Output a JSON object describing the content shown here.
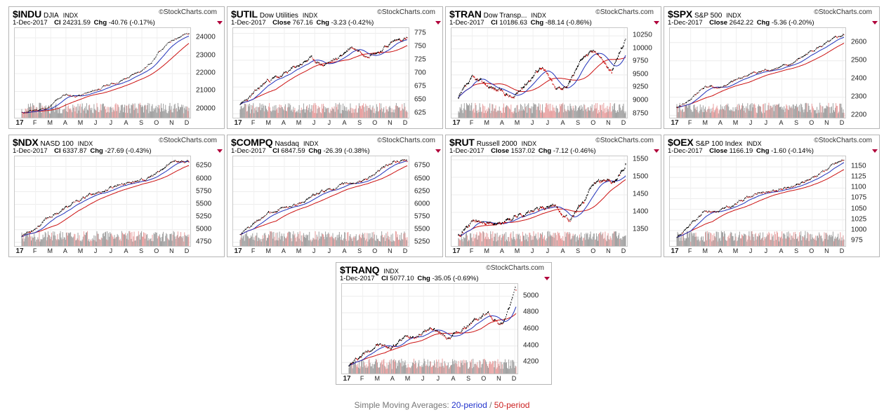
{
  "x_labels": [
    "17",
    "F",
    "M",
    "A",
    "M",
    "J",
    "J",
    "A",
    "S",
    "O",
    "N",
    "D"
  ],
  "colors": {
    "price": "#000000",
    "down": "#cc1111",
    "sma20": "#2233bb",
    "sma50": "#cc1111",
    "vol_up": "#a0a0a0",
    "vol_down": "#e8a0a0"
  },
  "legend": {
    "prefix": "Simple Moving Averages: ",
    "p20": "20-period",
    "sep": " / ",
    "p50": "50-period"
  },
  "chart_data": [
    {
      "type": "line",
      "symbol": "$INDU",
      "name": "DJIA",
      "exchange": "INDX",
      "brand": "StockCharts.com",
      "date": "1-Dec-2017",
      "close_label": "Cl",
      "close": "24231.59",
      "chg_label": "Chg",
      "chg": "-40.76 (-0.17%)",
      "yticks": [
        "24000",
        "23000",
        "22000",
        "21000",
        "20000"
      ],
      "ytick_values": [
        24000,
        23000,
        22000,
        21000,
        20000
      ],
      "ylim": [
        19450,
        24550
      ],
      "start": 19800,
      "end": 24231,
      "trend": [
        19800,
        19950,
        20100,
        20800,
        20750,
        20950,
        21300,
        21550,
        21900,
        22400,
        23300,
        24000,
        24231
      ],
      "vol": 0.35,
      "seed": 11
    },
    {
      "type": "line",
      "symbol": "$UTIL",
      "name": "Dow Utilities",
      "exchange": "INDX",
      "brand": "StockCharts.com",
      "date": "1-Dec-2017",
      "close_label": "Close",
      "close": "767.16",
      "chg_label": "Chg",
      "chg": "-3.23 (-0.42%)",
      "yticks": [
        "775",
        "750",
        "725",
        "700",
        "675",
        "650",
        "625"
      ],
      "ytick_values": [
        775,
        750,
        725,
        700,
        675,
        650,
        625
      ],
      "ylim": [
        615,
        785
      ],
      "start": 640,
      "end": 767,
      "trend": [
        640,
        662,
        688,
        695,
        712,
        728,
        716,
        728,
        750,
        738,
        742,
        760,
        767
      ],
      "vol": 0.55,
      "seed": 23
    },
    {
      "type": "line",
      "symbol": "$TRAN",
      "name": "Dow Transp...",
      "exchange": "INDX",
      "brand": "StockCharts.com",
      "date": "1-Dec-2017",
      "close_label": "Cl",
      "close": "10186.63",
      "chg_label": "Chg",
      "chg": "-88.14 (-0.86%)",
      "yticks": [
        "10250",
        "10000",
        "9750",
        "9500",
        "9250",
        "9000",
        "8750"
      ],
      "ytick_values": [
        10250,
        10000,
        9750,
        9500,
        9250,
        9000,
        8750
      ],
      "ylim": [
        8650,
        10400
      ],
      "start": 9050,
      "end": 10186,
      "trend": [
        9050,
        9400,
        9300,
        9200,
        9050,
        9400,
        9700,
        9200,
        9350,
        9900,
        9950,
        9550,
        10186
      ],
      "vol": 0.7,
      "seed": 37
    },
    {
      "type": "line",
      "symbol": "$SPX",
      "name": "S&P 500",
      "exchange": "INDX",
      "brand": "StockCharts.com",
      "date": "1-Dec-2017",
      "close_label": "Close",
      "close": "2642.22",
      "chg_label": "Chg",
      "chg": "-5.36 (-0.20%)",
      "yticks": [
        "2600",
        "2500",
        "2400",
        "2300",
        "2200"
      ],
      "ytick_values": [
        2600,
        2500,
        2400,
        2300,
        2200
      ],
      "ylim": [
        2180,
        2680
      ],
      "start": 2240,
      "end": 2642,
      "trend": [
        2240,
        2290,
        2360,
        2350,
        2380,
        2420,
        2440,
        2460,
        2470,
        2520,
        2570,
        2600,
        2642
      ],
      "vol": 0.4,
      "seed": 41
    },
    {
      "type": "line",
      "symbol": "$NDX",
      "name": "NASD 100",
      "exchange": "INDX",
      "brand": "StockCharts.com",
      "date": "1-Dec-2017",
      "close_label": "Cl",
      "close": "6337.87",
      "chg_label": "Chg",
      "chg": "-27.69 (-0.43%)",
      "yticks": [
        "6250",
        "6000",
        "5750",
        "5500",
        "5250",
        "5000",
        "4750"
      ],
      "ytick_values": [
        6250,
        6000,
        5750,
        5500,
        5250,
        5000,
        4750
      ],
      "ylim": [
        4650,
        6450
      ],
      "start": 4880,
      "end": 6337,
      "trend": [
        4880,
        5050,
        5250,
        5400,
        5550,
        5700,
        5780,
        5900,
        5960,
        6000,
        6150,
        6380,
        6337
      ],
      "vol": 0.45,
      "seed": 53
    },
    {
      "type": "line",
      "symbol": "$COMPQ",
      "name": "Nasdaq",
      "exchange": "INDX",
      "brand": "StockCharts.com",
      "date": "1-Dec-2017",
      "close_label": "Cl",
      "close": "6847.59",
      "chg_label": "Chg",
      "chg": "-26.39 (-0.38%)",
      "yticks": [
        "6750",
        "6500",
        "6250",
        "6000",
        "5750",
        "5500",
        "5250"
      ],
      "ytick_values": [
        6750,
        6500,
        6250,
        6000,
        5750,
        5500,
        5250
      ],
      "ylim": [
        5150,
        6950
      ],
      "start": 5400,
      "end": 6847,
      "trend": [
        5400,
        5600,
        5800,
        5900,
        6000,
        6150,
        6250,
        6350,
        6400,
        6500,
        6650,
        6850,
        6847
      ],
      "vol": 0.45,
      "seed": 61
    },
    {
      "type": "line",
      "symbol": "$RUT",
      "name": "Russell 2000",
      "exchange": "INDX",
      "brand": "StockCharts.com",
      "date": "1-Dec-2017",
      "close_label": "Close",
      "close": "1537.02",
      "chg_label": "Chg",
      "chg": "-7.12 (-0.46%)",
      "yticks": [
        "1550",
        "1500",
        "1450",
        "1400",
        "1350"
      ],
      "ytick_values": [
        1550,
        1500,
        1450,
        1400,
        1350
      ],
      "ylim": [
        1300,
        1560
      ],
      "start": 1340,
      "end": 1537,
      "trend": [
        1340,
        1375,
        1370,
        1365,
        1390,
        1400,
        1410,
        1415,
        1380,
        1430,
        1500,
        1490,
        1537
      ],
      "vol": 0.7,
      "seed": 71
    },
    {
      "type": "line",
      "symbol": "$OEX",
      "name": "S&P 100 Index",
      "exchange": "INDX",
      "brand": "StockCharts.com",
      "date": "1-Dec-2017",
      "close_label": "Close",
      "close": "1166.19",
      "chg_label": "Chg",
      "chg": "-1.60 (-0.14%)",
      "yticks": [
        "1150",
        "1125",
        "1100",
        "1075",
        "1050",
        "1025",
        "1000",
        "975"
      ],
      "ytick_values": [
        1150,
        1125,
        1100,
        1075,
        1050,
        1025,
        1000,
        975
      ],
      "ylim": [
        960,
        1175
      ],
      "start": 985,
      "end": 1166,
      "trend": [
        985,
        1015,
        1050,
        1045,
        1055,
        1080,
        1090,
        1095,
        1100,
        1110,
        1130,
        1150,
        1166
      ],
      "vol": 0.45,
      "seed": 83
    },
    {
      "type": "line",
      "symbol": "$TRANQ",
      "name": "",
      "exchange": "INDX",
      "brand": "StockCharts.com",
      "date": "1-Dec-2017",
      "close_label": "Cl",
      "close": "5077.10",
      "chg_label": "Chg",
      "chg": "-35.05 (-0.69%)",
      "yticks": [
        "5000",
        "4800",
        "4600",
        "4400",
        "4200"
      ],
      "ytick_values": [
        5000,
        4800,
        4600,
        4400,
        4200
      ],
      "ylim": [
        4050,
        5150
      ],
      "start": 4150,
      "end": 5077,
      "trend": [
        4150,
        4300,
        4420,
        4380,
        4500,
        4550,
        4620,
        4500,
        4580,
        4700,
        4800,
        4650,
        5077
      ],
      "vol": 0.6,
      "seed": 97
    }
  ]
}
